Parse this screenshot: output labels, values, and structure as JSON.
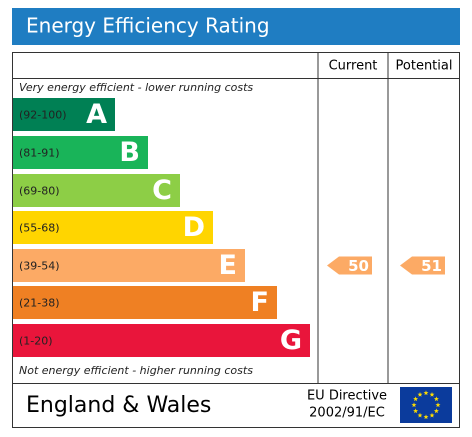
{
  "title": "Energy Efficiency Rating",
  "columns": {
    "current": "Current",
    "potential": "Potential"
  },
  "top_note": "Very energy efficient - lower running costs",
  "bottom_note": "Not energy efficient - higher running costs",
  "bands": [
    {
      "range": "(92-100)",
      "letter": "A",
      "color": "#008054"
    },
    {
      "range": "(81-91)",
      "letter": "B",
      "color": "#19b459"
    },
    {
      "range": "(69-80)",
      "letter": "C",
      "color": "#8dce46"
    },
    {
      "range": "(55-68)",
      "letter": "D",
      "color": "#ffd500"
    },
    {
      "range": "(39-54)",
      "letter": "E",
      "color": "#fcaa65"
    },
    {
      "range": "(21-38)",
      "letter": "F",
      "color": "#ef8023"
    },
    {
      "range": "(1-20)",
      "letter": "G",
      "color": "#e9153b"
    }
  ],
  "current": {
    "value": 50
  },
  "potential": {
    "value": 51
  },
  "footer": {
    "region": "England & Wales",
    "directive": "EU Directive",
    "code": "2002/91/EC"
  }
}
